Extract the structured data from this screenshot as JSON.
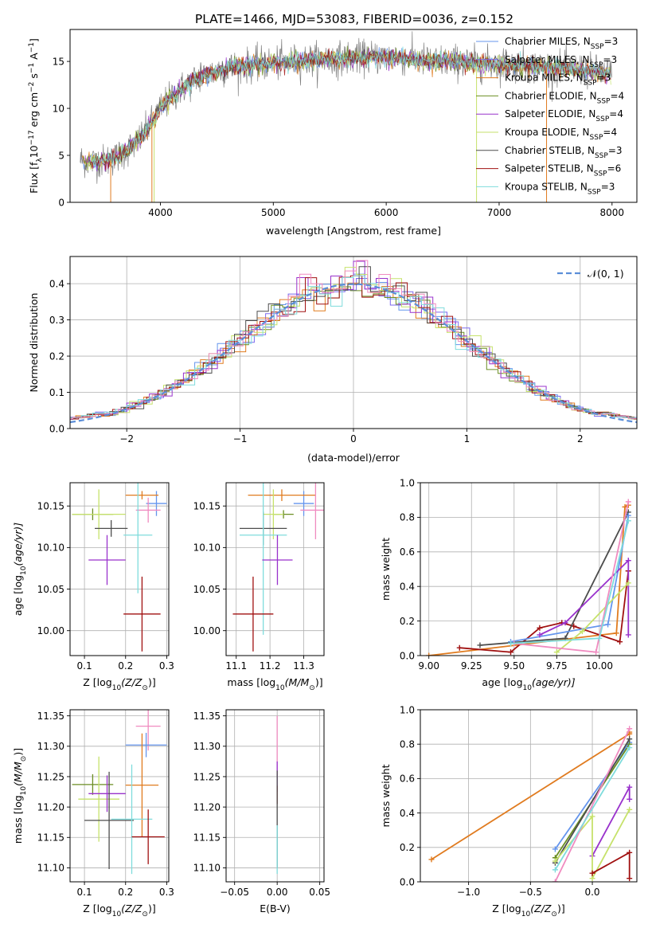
{
  "figure_title": "PLATE=1466, MJD=53083, FIBERID=0036, z=0.152",
  "colors": {
    "chabrier_miles": "#6495ed",
    "salpeter_miles": "#7b68ee",
    "kroupa_miles": "#e07b1f",
    "chabrier_elodie": "#6b8e23",
    "salpeter_elodie": "#9932cc",
    "kroupa_elodie": "#c6e26b",
    "chabrier_stelib": "#4d4d4d",
    "salpeter_stelib": "#a01010",
    "kroupa_stelib": "#7fdcdc",
    "pink": "#f08bc0",
    "data_gray": "#808080",
    "gauss": "#5b8ed8",
    "grid": "#b0b0b0"
  },
  "chart_data": [
    {
      "id": "spectrum",
      "type": "line",
      "title": "PLATE=1466, MJD=53083, FIBERID=0036, z=0.152",
      "xlabel": "wavelength [Angstrom, rest frame]",
      "ylabel_main": "Flux [f",
      "ylabel_sub": "λ",
      "ylabel_rest": "10",
      "ylabel_exp": "−17",
      "ylabel_tail": " erg cm",
      "ylabel_exp2": "−2",
      "ylabel_tail2": " s",
      "ylabel_exp3": "−1",
      "ylabel_tail3": " A",
      "ylabel_exp4": "−1",
      "ylabel_end": "]",
      "xlim": [
        3200,
        8220
      ],
      "ylim": [
        0,
        18.4
      ],
      "xticks": [
        4000,
        5000,
        6000,
        7000,
        8000
      ],
      "yticks": [
        0,
        5,
        10,
        15
      ],
      "grid": false,
      "legend_position": "upper-right",
      "legend": [
        {
          "label": "Chabrier MILES, N",
          "sub": "SSP",
          "tail": "=3",
          "color": "#6495ed"
        },
        {
          "label": "Salpeter MILES, N",
          "sub": "SSP",
          "tail": "=3",
          "color": "#7b68ee"
        },
        {
          "label": "Kroupa MILES, N",
          "sub": "SSP",
          "tail": "=3",
          "color": "#e07b1f"
        },
        {
          "label": "Chabrier ELODIE, N",
          "sub": "SSP",
          "tail": "=4",
          "color": "#6b8e23"
        },
        {
          "label": "Salpeter ELODIE, N",
          "sub": "SSP",
          "tail": "=4",
          "color": "#9932cc"
        },
        {
          "label": "Kroupa ELODIE, N",
          "sub": "SSP",
          "tail": "=4",
          "color": "#c6e26b"
        },
        {
          "label": "Chabrier STELIB, N",
          "sub": "SSP",
          "tail": "=3",
          "color": "#4d4d4d"
        },
        {
          "label": "Salpeter STELIB, N",
          "sub": "SSP",
          "tail": "=6",
          "color": "#a01010"
        },
        {
          "label": "Kroupa STELIB, N",
          "sub": "SSP",
          "tail": "=3",
          "color": "#7fdcdc"
        }
      ],
      "continuum": {
        "x": [
          3300,
          3400,
          3500,
          3600,
          3700,
          3800,
          3900,
          4000,
          4100,
          4200,
          4300,
          4400,
          4500,
          4600,
          4800,
          5000,
          5200,
          5400,
          5600,
          5800,
          6000,
          6200,
          6400,
          6600,
          6800,
          7000,
          7200,
          7400,
          7600,
          7800,
          8000
        ],
        "y": [
          4.5,
          4.3,
          4.4,
          4.7,
          5.5,
          6.5,
          8.0,
          10.0,
          11.2,
          12.2,
          13.0,
          13.5,
          14.0,
          14.3,
          14.6,
          14.8,
          15.0,
          15.2,
          15.3,
          15.4,
          15.5,
          15.3,
          15.0,
          15.0,
          14.8,
          14.7,
          14.6,
          14.4,
          14.2,
          14.0,
          13.6
        ]
      }
    },
    {
      "id": "residuals",
      "type": "histogram",
      "xlabel": "(data-model)/error",
      "ylabel": "Normed distribution",
      "xlim": [
        -2.5,
        2.5
      ],
      "ylim": [
        0,
        0.475
      ],
      "xticks": [
        -2,
        -1,
        0,
        1,
        2
      ],
      "yticks": [
        0.0,
        0.1,
        0.2,
        0.3,
        0.4
      ],
      "grid": true,
      "legend_position": "upper-right",
      "legend_label": "𝒩(0, 1)",
      "bin_width": 0.1
    },
    {
      "id": "z_vs_age",
      "type": "errorbar",
      "xlabel": "Z [log",
      "xlabel_sub": "10",
      "xlabel_tail": "(Z/Z",
      "xlabel_sub2": "⊙",
      "xlabel_end": ")]",
      "ylabel": "age  [log",
      "ylabel_sub": "10",
      "ylabel_tail": "(age/yr)]",
      "xlim": [
        0.065,
        0.305
      ],
      "ylim": [
        9.97,
        10.178
      ],
      "xticks": [
        0.1,
        0.2,
        0.3
      ],
      "yticks": [
        10.0,
        10.05,
        10.1,
        10.15
      ],
      "grid": true,
      "points": [
        {
          "color": "#6495ed",
          "x": 0.275,
          "xerr": 0.025,
          "y": 10.153,
          "yerr": 0.015
        },
        {
          "color": "#e07b1f",
          "x": 0.24,
          "xerr": 0.04,
          "y": 10.163,
          "yerr": 0.005
        },
        {
          "color": "#f08bc0",
          "x": 0.255,
          "xerr": 0.03,
          "y": 10.145,
          "yerr": 0.015
        },
        {
          "color": "#6b8e23",
          "x": 0.12,
          "xerr": 0.05,
          "y": 10.14,
          "yerr": 0.007
        },
        {
          "color": "#c6e26b",
          "x": 0.135,
          "xerr": 0.065,
          "y": 10.14,
          "yerr": 0.03
        },
        {
          "color": "#4d4d4d",
          "x": 0.165,
          "xerr": 0.04,
          "y": 10.123,
          "yerr": 0.01
        },
        {
          "color": "#7fdcdc",
          "x": 0.23,
          "xerr": 0.035,
          "y": 10.115,
          "yerr": 0.07
        },
        {
          "color": "#9932cc",
          "x": 0.155,
          "xerr": 0.045,
          "y": 10.085,
          "yerr": 0.03
        },
        {
          "color": "#a01010",
          "x": 0.24,
          "xerr": 0.045,
          "y": 10.02,
          "yerr": 0.045
        }
      ]
    },
    {
      "id": "mass_vs_age",
      "type": "errorbar",
      "xlabel": "mass [log",
      "xlabel_sub": "10",
      "xlabel_tail": "(M/M",
      "xlabel_sub2": "⊙",
      "xlabel_end": ")]",
      "xlim": [
        11.07,
        11.36
      ],
      "ylim": [
        9.97,
        10.178
      ],
      "xticks": [
        11.1,
        11.2,
        11.3
      ],
      "yticks": [
        10.0,
        10.05,
        10.1,
        10.15
      ],
      "grid": true,
      "points": [
        {
          "color": "#6495ed",
          "x": 11.3,
          "xerr": 0.03,
          "y": 10.153,
          "yerr": 0.015
        },
        {
          "color": "#e07b1f",
          "x": 11.235,
          "xerr": 0.1,
          "y": 10.163,
          "yerr": 0.007
        },
        {
          "color": "#f08bc0",
          "x": 11.335,
          "xerr": 0.045,
          "y": 10.145,
          "yerr": 0.035
        },
        {
          "color": "#6b8e23",
          "x": 11.24,
          "xerr": 0.03,
          "y": 10.14,
          "yerr": 0.005
        },
        {
          "color": "#c6e26b",
          "x": 11.21,
          "xerr": 0.03,
          "y": 10.14,
          "yerr": 0.03
        },
        {
          "color": "#4d4d4d",
          "x": 11.18,
          "xerr": 0.07,
          "y": 10.123,
          "yerr": 0.02
        },
        {
          "color": "#7fdcdc",
          "x": 11.18,
          "xerr": 0.07,
          "y": 10.115,
          "yerr": 0.12
        },
        {
          "color": "#9932cc",
          "x": 11.222,
          "xerr": 0.045,
          "y": 10.085,
          "yerr": 0.03
        },
        {
          "color": "#a01010",
          "x": 11.15,
          "xerr": 0.06,
          "y": 10.02,
          "yerr": 0.045
        }
      ]
    },
    {
      "id": "age_mass_weight",
      "type": "line",
      "xlabel": "age  [log",
      "xlabel_sub": "10",
      "xlabel_tail": "(age/yr)]",
      "ylabel": "mass weight",
      "xlim": [
        8.95,
        10.22
      ],
      "ylim": [
        0,
        1.0
      ],
      "xticks": [
        9.0,
        9.25,
        9.5,
        9.75,
        10.0
      ],
      "xticklabels": [
        "9.00",
        "9.25",
        "9.50",
        "9.75",
        "10.00"
      ],
      "yticks": [
        0.0,
        0.2,
        0.4,
        0.6,
        0.8,
        1.0
      ],
      "grid": true,
      "series": [
        {
          "color": "#e07b1f",
          "x": [
            9.0,
            10.1,
            10.15,
            10.17
          ],
          "y": [
            0.0,
            0.13,
            0.86,
            0.87
          ]
        },
        {
          "color": "#a01010",
          "x": [
            9.18,
            9.48,
            9.65,
            9.78,
            9.85,
            10.12,
            10.17,
            10.17
          ],
          "y": [
            0.045,
            0.02,
            0.16,
            0.19,
            0.17,
            0.08,
            0.49,
            0.49
          ]
        },
        {
          "color": "#4d4d4d",
          "x": [
            9.3,
            9.8,
            10.17
          ],
          "y": [
            0.06,
            0.1,
            0.83
          ]
        },
        {
          "color": "#6495ed",
          "x": [
            9.48,
            10.05,
            10.17
          ],
          "y": [
            0.08,
            0.18,
            0.81
          ]
        },
        {
          "color": "#9932cc",
          "x": [
            9.65,
            9.8,
            10.17,
            10.17
          ],
          "y": [
            0.12,
            0.19,
            0.55,
            0.12
          ]
        },
        {
          "color": "#c6e26b",
          "x": [
            9.75,
            9.9,
            10.17
          ],
          "y": [
            0.02,
            0.14,
            0.42
          ]
        },
        {
          "color": "#f08bc0",
          "x": [
            9.5,
            9.98,
            10.17
          ],
          "y": [
            0.07,
            0.02,
            0.89
          ]
        },
        {
          "color": "#7fdcdc",
          "x": [
            9.48,
            10.0,
            10.17
          ],
          "y": [
            0.07,
            0.1,
            0.78
          ]
        }
      ]
    },
    {
      "id": "z_vs_mass",
      "type": "errorbar",
      "xlabel": "Z [log",
      "xlabel_sub": "10",
      "xlabel_tail": "(Z/Z",
      "xlabel_sub2": "⊙",
      "xlabel_end": ")]",
      "ylabel": "mass [log",
      "ylabel_sub": "10",
      "ylabel_tail": "(M/M",
      "ylabel_sub2": "⊙",
      "ylabel_end": ")]",
      "xlim": [
        0.065,
        0.305
      ],
      "ylim": [
        11.077,
        11.36
      ],
      "xticks": [
        0.1,
        0.2,
        0.3
      ],
      "yticks": [
        11.1,
        11.15,
        11.2,
        11.25,
        11.3,
        11.35
      ],
      "grid": true,
      "points": [
        {
          "color": "#f08bc0",
          "x": 0.255,
          "xerr": 0.03,
          "y": 11.333,
          "yerr": 0.04
        },
        {
          "color": "#6495ed",
          "x": 0.25,
          "xerr": 0.05,
          "y": 11.302,
          "yerr": 0.02
        },
        {
          "color": "#e07b1f",
          "x": 0.24,
          "xerr": 0.04,
          "y": 11.236,
          "yerr": 0.085
        },
        {
          "color": "#6b8e23",
          "x": 0.12,
          "xerr": 0.05,
          "y": 11.237,
          "yerr": 0.017
        },
        {
          "color": "#c6e26b",
          "x": 0.135,
          "xerr": 0.05,
          "y": 11.213,
          "yerr": 0.07
        },
        {
          "color": "#9932cc",
          "x": 0.155,
          "xerr": 0.045,
          "y": 11.222,
          "yerr": 0.03
        },
        {
          "color": "#4d4d4d",
          "x": 0.16,
          "xerr": 0.06,
          "y": 11.178,
          "yerr": 0.08
        },
        {
          "color": "#7fdcdc",
          "x": 0.215,
          "xerr": 0.05,
          "y": 11.18,
          "yerr": 0.09
        },
        {
          "color": "#a01010",
          "x": 0.255,
          "xerr": 0.04,
          "y": 11.151,
          "yerr": 0.045
        }
      ]
    },
    {
      "id": "ebv_vs_mass",
      "type": "errorbar",
      "xlabel": "E(B-V)",
      "xlim": [
        -0.06,
        0.055
      ],
      "ylim": [
        11.077,
        11.36
      ],
      "xticks": [
        -0.05,
        0.0,
        0.05
      ],
      "xticklabels": [
        "−0.05",
        "0.00",
        "0.05"
      ],
      "yticks": [
        11.1,
        11.15,
        11.2,
        11.25,
        11.3,
        11.35
      ],
      "grid": true,
      "points": [
        {
          "color": "#f08bc0",
          "x": 0.0,
          "xerr": 0.0,
          "y": 11.3,
          "yerr": 0.05
        },
        {
          "color": "#9932cc",
          "x": 0.0,
          "xerr": 0.0,
          "y": 11.25,
          "yerr": 0.025
        },
        {
          "color": "#a01010",
          "x": 0.0,
          "xerr": 0.0,
          "y": 11.22,
          "yerr": 0.015
        },
        {
          "color": "#4d4d4d",
          "x": 0.0,
          "xerr": 0.0,
          "y": 11.18,
          "yerr": 0.08
        },
        {
          "color": "#7fdcdc",
          "x": 0.0,
          "xerr": 0.0,
          "y": 11.13,
          "yerr": 0.04
        }
      ]
    },
    {
      "id": "z_mass_weight",
      "type": "line",
      "xlabel": "Z [log",
      "xlabel_sub": "10",
      "xlabel_tail": "(Z/Z",
      "xlabel_sub2": "⊙",
      "xlabel_end": ")]",
      "ylabel": "mass weight",
      "xlim": [
        -1.39,
        0.36
      ],
      "ylim": [
        0,
        1.0
      ],
      "xticks": [
        -1.0,
        -0.5,
        0.0
      ],
      "xticklabels": [
        "−1.0",
        "−0.5",
        "0.0"
      ],
      "yticks": [
        0.0,
        0.2,
        0.4,
        0.6,
        0.8,
        1.0
      ],
      "grid": true,
      "series": [
        {
          "color": "#e07b1f",
          "x": [
            -1.3,
            0.3,
            0.3
          ],
          "y": [
            0.13,
            0.86,
            0.87
          ]
        },
        {
          "color": "#6495ed",
          "x": [
            -0.3,
            0.3
          ],
          "y": [
            0.19,
            0.81
          ]
        },
        {
          "color": "#6b8e23",
          "x": [
            -0.3,
            0.3
          ],
          "y": [
            0.14,
            0.8
          ]
        },
        {
          "color": "#4d4d4d",
          "x": [
            -0.3,
            0.3
          ],
          "y": [
            0.11,
            0.83
          ]
        },
        {
          "color": "#9932cc",
          "x": [
            0.0,
            0.3,
            0.3
          ],
          "y": [
            0.15,
            0.55,
            0.48
          ]
        },
        {
          "color": "#c6e26b",
          "x": [
            -0.3,
            0.0,
            0.0,
            0.3
          ],
          "y": [
            0.12,
            0.38,
            0.02,
            0.42
          ]
        },
        {
          "color": "#a01010",
          "x": [
            0.0,
            0.3,
            0.3
          ],
          "y": [
            0.05,
            0.17,
            0.02
          ]
        },
        {
          "color": "#f08bc0",
          "x": [
            -0.3,
            0.3
          ],
          "y": [
            0.0,
            0.89
          ]
        },
        {
          "color": "#7fdcdc",
          "x": [
            -0.3,
            0.3
          ],
          "y": [
            0.07,
            0.78
          ]
        }
      ]
    }
  ]
}
